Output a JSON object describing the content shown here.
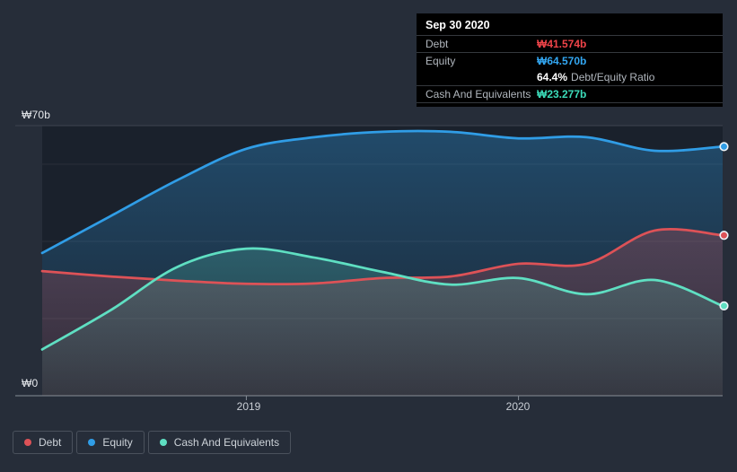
{
  "colors": {
    "background": "#262d39",
    "plot_background": "#1a212c",
    "axis_line": "#878e98",
    "gridline": "rgba(255,255,255,0.07)",
    "top_gridline": "#3d4450",
    "debt": "#dd5257",
    "equity": "#309de6",
    "cash": "#5fdfc2",
    "tooltip_bg": "#000000",
    "tooltip_debt_value": "#ef4449",
    "tooltip_equity_value": "#33a7f2",
    "tooltip_cash_value": "#3cdcba",
    "tooltip_label": "#b0b6bd",
    "tooltip_title": "#ffffff"
  },
  "tooltip": {
    "title": "Sep 30 2020",
    "debt_label": "Debt",
    "debt_value": "₩41.574b",
    "equity_label": "Equity",
    "equity_value": "₩64.570b",
    "ratio_value": "64.4%",
    "ratio_label": "Debt/Equity Ratio",
    "cash_label": "Cash And Equivalents",
    "cash_value": "₩23.277b"
  },
  "axes": {
    "y_top_label": "₩70b",
    "y_bottom_label": "₩0",
    "x_tick_1": "2019",
    "x_tick_2": "2020"
  },
  "chart_data": {
    "type": "area",
    "x": [
      "Mar 2018",
      "Jun 2018",
      "Sep 2018",
      "Dec 2018",
      "Mar 2019",
      "Jun 2019",
      "Sep 2019",
      "Dec 2019",
      "Mar 2020",
      "Jun 2020",
      "Sep 2020"
    ],
    "series": [
      {
        "name": "Debt",
        "color": "#dd5257",
        "values": [
          32.3,
          30.9,
          29.8,
          29.0,
          29.1,
          30.5,
          30.9,
          34.2,
          34.2,
          42.8,
          41.574
        ]
      },
      {
        "name": "Equity",
        "color": "#309de6",
        "values": [
          37.0,
          46.5,
          56.0,
          64.0,
          67.0,
          68.4,
          68.4,
          66.7,
          67.0,
          63.5,
          64.57
        ]
      },
      {
        "name": "Cash And Equivalents",
        "color": "#5fdfc2",
        "values": [
          12.0,
          22.1,
          33.5,
          38.1,
          35.8,
          32.1,
          28.8,
          30.5,
          26.3,
          30.0,
          23.277
        ]
      }
    ],
    "ylim": [
      0,
      70
    ],
    "y_unit": "₩ billions",
    "gridline_values": [
      20,
      40,
      60
    ],
    "x_tick_labels": [
      "2019",
      "2020"
    ],
    "x_tick_indices": [
      3,
      7
    ],
    "legend_position": "bottom-left",
    "highlighted_point": {
      "x": "Sep 30 2020",
      "Debt": 41.574,
      "Equity": 64.57,
      "Cash And Equivalents": 23.277,
      "debt_equity_ratio_pct": 64.4
    }
  }
}
